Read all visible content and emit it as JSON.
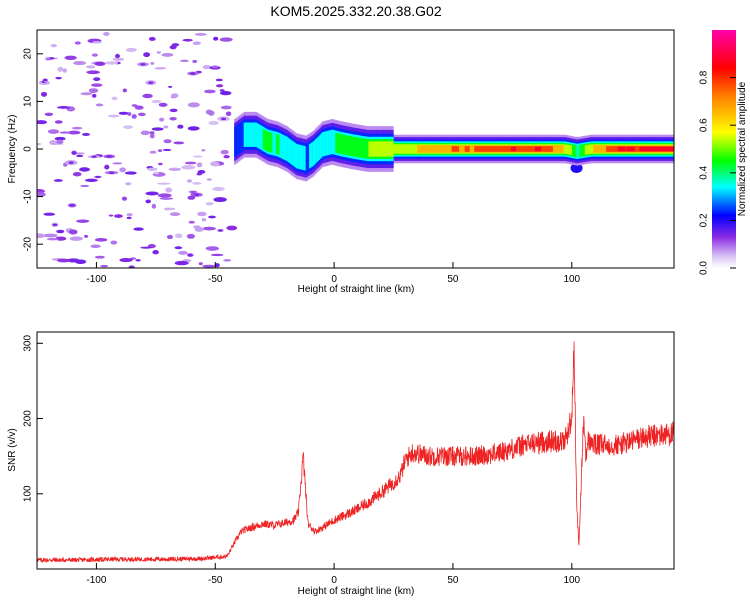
{
  "title": "KOM5.2025.332.20.38.G02",
  "chart_data": [
    {
      "type": "heatmap",
      "title": "KOM5.2025.332.20.38.G02",
      "xlabel": "Height of straight line (km)",
      "ylabel": "Frequency (Hz)",
      "xlim": [
        -125,
        143
      ],
      "ylim": [
        -25,
        25
      ],
      "xticks": [
        -100,
        -50,
        0,
        50,
        100
      ],
      "xtick_labels": [
        "-100",
        "-50",
        "0",
        "50",
        "100"
      ],
      "yticks": [
        -20,
        -10,
        0,
        10,
        20
      ],
      "ytick_labels": [
        "-20",
        "-10",
        "0",
        "10",
        "20"
      ],
      "colorbar": {
        "label": "Normalized spectral amplitude",
        "range": [
          0,
          1
        ],
        "ticks": [
          0,
          0.2,
          0.4,
          0.6,
          0.8
        ],
        "tick_labels": [
          "0.0",
          "0.2",
          "0.4",
          "0.6",
          "0.8"
        ],
        "colormap": "rainbow (white-lavender-purple-blue-cyan-green-yellow-orange-red-magenta)"
      },
      "noise_region": {
        "x_range": [
          -125,
          -43
        ],
        "typical_amplitude": 0.1
      },
      "signal_ridge": [
        {
          "x": -42,
          "freq": 1.5,
          "amp": 0.25
        },
        {
          "x": -38,
          "freq": 3.0,
          "amp": 0.3
        },
        {
          "x": -33,
          "freq": 3.0,
          "amp": 0.35
        },
        {
          "x": -28,
          "freq": 1.5,
          "amp": 0.45
        },
        {
          "x": -24,
          "freq": 1.0,
          "amp": 0.4
        },
        {
          "x": -20,
          "freq": 0.0,
          "amp": 0.35
        },
        {
          "x": -16,
          "freq": -1.5,
          "amp": 0.35
        },
        {
          "x": -12,
          "freq": -2.0,
          "amp": 0.3
        },
        {
          "x": -9,
          "freq": -1.0,
          "amp": 0.3
        },
        {
          "x": -5,
          "freq": 1.0,
          "amp": 0.35
        },
        {
          "x": -1,
          "freq": 1.5,
          "amp": 0.4
        },
        {
          "x": 3,
          "freq": 1.0,
          "amp": 0.4
        },
        {
          "x": 8,
          "freq": 0.5,
          "amp": 0.45
        },
        {
          "x": 14,
          "freq": 0.0,
          "amp": 0.5
        },
        {
          "x": 20,
          "freq": 0.0,
          "amp": 0.55
        },
        {
          "x": 30,
          "freq": 0.0,
          "amp": 0.6
        },
        {
          "x": 40,
          "freq": 0.0,
          "amp": 0.7
        },
        {
          "x": 50,
          "freq": 0.0,
          "amp": 0.75
        },
        {
          "x": 60,
          "freq": 0.0,
          "amp": 0.8
        },
        {
          "x": 70,
          "freq": 0.0,
          "amp": 0.85
        },
        {
          "x": 80,
          "freq": 0.0,
          "amp": 0.85
        },
        {
          "x": 90,
          "freq": 0.0,
          "amp": 0.85
        },
        {
          "x": 97,
          "freq": 0.0,
          "amp": 0.6
        },
        {
          "x": 102,
          "freq": -0.5,
          "amp": 0.4
        },
        {
          "x": 108,
          "freq": 0.0,
          "amp": 0.6
        },
        {
          "x": 115,
          "freq": 0.0,
          "amp": 0.8
        },
        {
          "x": 125,
          "freq": 0.0,
          "amp": 0.9
        },
        {
          "x": 135,
          "freq": 0.0,
          "amp": 0.92
        },
        {
          "x": 143,
          "freq": 0.0,
          "amp": 0.92
        }
      ],
      "side_blobs": [
        {
          "x": -14,
          "freq": -4.5,
          "amp": 0.15
        },
        {
          "x": 102,
          "freq": -4.0,
          "amp": 0.2
        },
        {
          "x": 102,
          "freq": 1.5,
          "amp": 0.15
        }
      ]
    },
    {
      "type": "line",
      "xlabel": "Height of straight line (km)",
      "ylabel": "SNR (v/v)",
      "xlim": [
        -125,
        143
      ],
      "ylim": [
        0,
        315
      ],
      "xticks": [
        -100,
        -50,
        0,
        50,
        100
      ],
      "xtick_labels": [
        "-100",
        "-50",
        "0",
        "50",
        "100"
      ],
      "yticks": [
        100,
        200,
        300
      ],
      "ytick_labels": [
        "100",
        "200",
        "300"
      ],
      "series": [
        {
          "name": "SNR",
          "color": "#ee2222",
          "x": [
            -125,
            -110,
            -90,
            -70,
            -55,
            -45,
            -41,
            -39,
            -35,
            -30,
            -25,
            -20,
            -17,
            -15,
            -13,
            -11,
            -8,
            -5,
            0,
            5,
            10,
            15,
            20,
            25,
            28,
            30,
            33,
            40,
            50,
            60,
            70,
            80,
            90,
            97,
            100,
            101,
            102,
            103,
            104,
            105,
            106,
            107,
            110,
            120,
            130,
            143
          ],
          "y": [
            12,
            12,
            13,
            13,
            14,
            17,
            40,
            50,
            55,
            60,
            58,
            62,
            65,
            75,
            150,
            60,
            50,
            55,
            65,
            72,
            80,
            90,
            102,
            115,
            125,
            145,
            155,
            150,
            150,
            150,
            155,
            165,
            170,
            170,
            200,
            300,
            90,
            30,
            120,
            200,
            150,
            170,
            165,
            165,
            175,
            180
          ]
        }
      ]
    }
  ]
}
